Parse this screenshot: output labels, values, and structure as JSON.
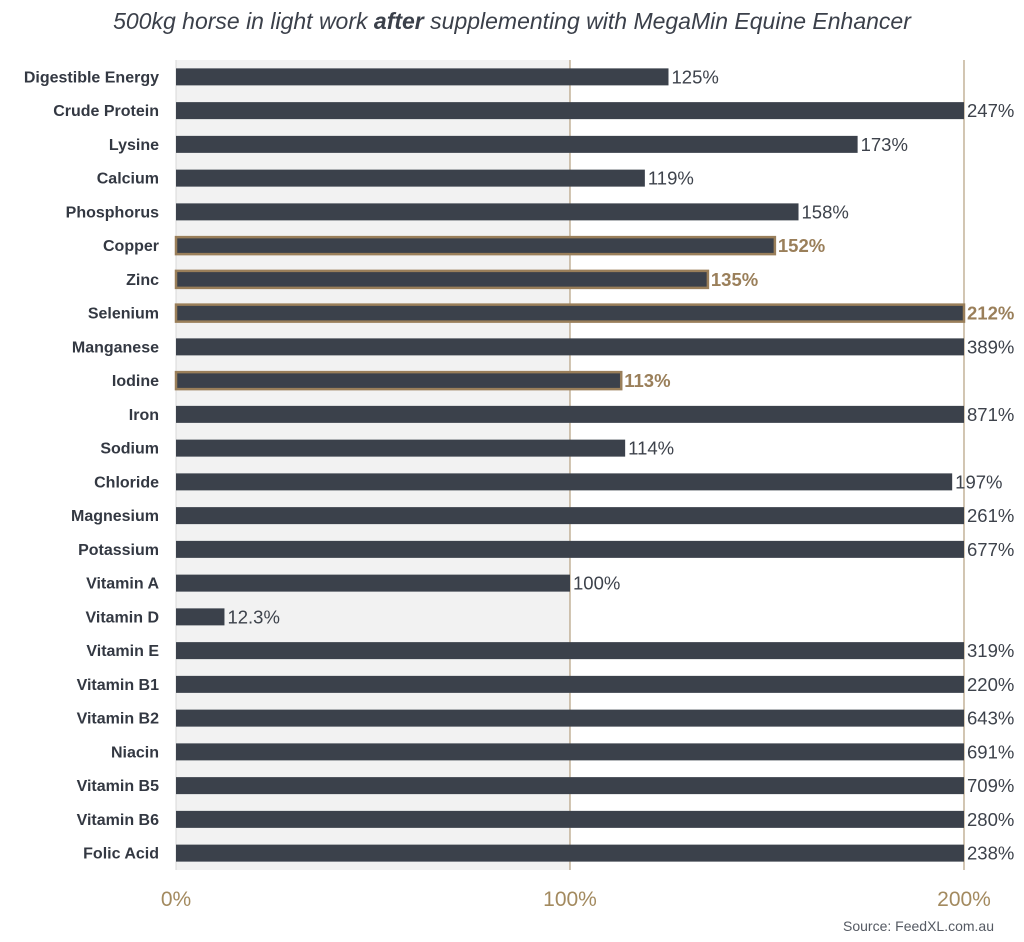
{
  "title": {
    "prefix": "500kg horse in light work ",
    "emphasis": "after",
    "suffix": " supplementing with MegaMin Equine Enhancer"
  },
  "source": "Source: FeedXL.com.au",
  "colors": {
    "bar": "#3b414b",
    "highlight": "#9a7f5a",
    "shade": "#f2f2f2",
    "axis_tick": "#a38a5f",
    "gridline": "#b59f80",
    "label": "#333842",
    "value": "#3d424b"
  },
  "chart_data": {
    "type": "bar",
    "orientation": "horizontal",
    "x_range": [
      0,
      200
    ],
    "x_ticks": [
      "0%",
      "100%",
      "200%"
    ],
    "shaded_region": [
      0,
      100
    ],
    "gridlines": [
      100,
      200
    ],
    "values_clipped_at_max": true,
    "categories": [
      "Digestible Energy",
      "Crude Protein",
      "Lysine",
      "Calcium",
      "Phosphorus",
      "Copper",
      "Zinc",
      "Selenium",
      "Manganese",
      "Iodine",
      "Iron",
      "Sodium",
      "Chloride",
      "Magnesium",
      "Potassium",
      "Vitamin A",
      "Vitamin D",
      "Vitamin E",
      "Vitamin B1",
      "Vitamin B2",
      "Niacin",
      "Vitamin B5",
      "Vitamin B6",
      "Folic Acid"
    ],
    "values": [
      125,
      247,
      173,
      119,
      158,
      152,
      135,
      212,
      389,
      113,
      871,
      114,
      197,
      261,
      677,
      100,
      12.3,
      319,
      220,
      643,
      691,
      709,
      280,
      238
    ],
    "value_labels": [
      "125%",
      "247%",
      "173%",
      "119%",
      "158%",
      "152%",
      "135%",
      "212%",
      "389%",
      "113%",
      "871%",
      "114%",
      "197%",
      "261%",
      "677%",
      "100%",
      "12.3%",
      "319%",
      "220%",
      "643%",
      "691%",
      "709%",
      "280%",
      "238%"
    ],
    "highlighted": [
      "Copper",
      "Zinc",
      "Selenium",
      "Iodine"
    ]
  }
}
